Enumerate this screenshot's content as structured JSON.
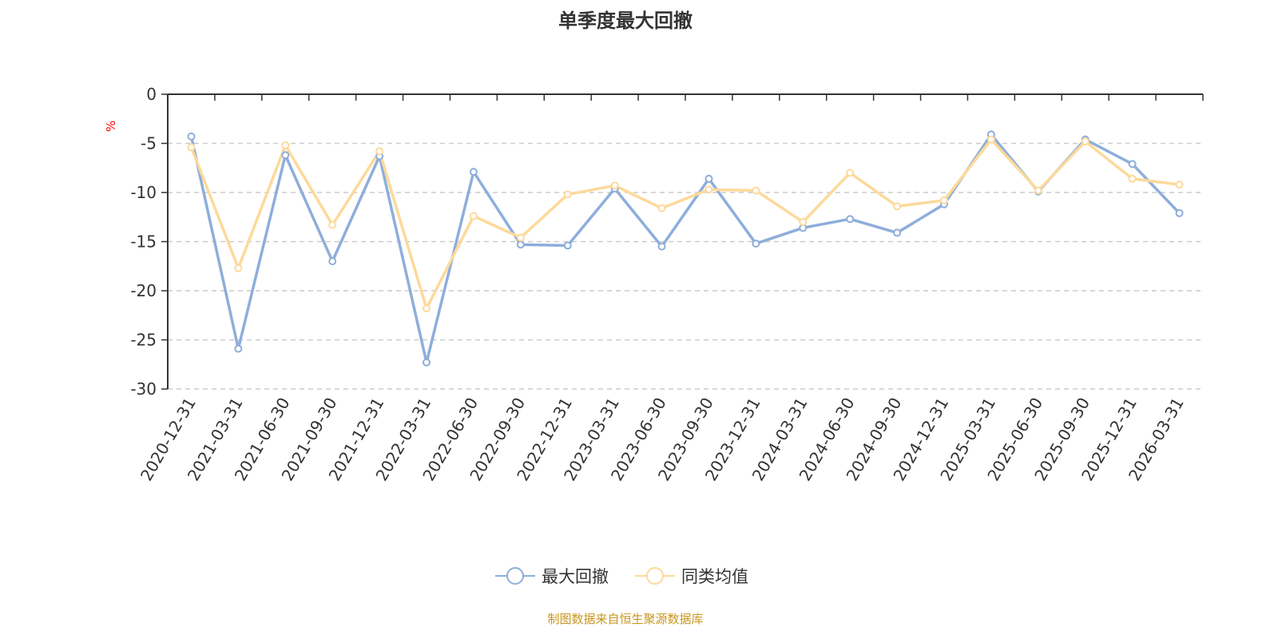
{
  "chart_data": {
    "type": "line",
    "title": "单季度最大回撤",
    "ylabel": "%",
    "ylim": [
      -30,
      0
    ],
    "yticks": [
      0,
      -5,
      -10,
      -15,
      -20,
      -25,
      -30
    ],
    "grid": true,
    "legend_position": "bottom",
    "categories": [
      "2020-12-31",
      "2021-03-31",
      "2021-06-30",
      "2021-09-30",
      "2021-12-31",
      "2022-03-31",
      "2022-06-30",
      "2022-09-30",
      "2022-12-31",
      "2023-03-31",
      "2023-06-30",
      "2023-09-30",
      "2023-12-31",
      "2024-03-31",
      "2024-06-30",
      "2024-09-30",
      "2024-12-31",
      "2025-03-31",
      "2025-06-30",
      "2025-09-30",
      "2025-12-31",
      "2026-03-31"
    ],
    "series": [
      {
        "name": "最大回撤",
        "color": "#8eaedb",
        "values": [
          -4.3,
          -25.9,
          -6.2,
          -17.0,
          -6.3,
          -27.3,
          -7.9,
          -15.3,
          -15.4,
          -9.6,
          -15.5,
          -8.6,
          -15.2,
          -13.6,
          -12.7,
          -14.1,
          -11.2,
          -4.1,
          -9.9,
          -4.6,
          -7.1,
          -12.1
        ]
      },
      {
        "name": "同类均值",
        "color": "#fdd99a",
        "values": [
          -5.4,
          -17.7,
          -5.2,
          -13.3,
          -5.8,
          -21.8,
          -12.4,
          -14.6,
          -10.2,
          -9.3,
          -11.6,
          -9.7,
          -9.8,
          -13.0,
          -8.0,
          -11.4,
          -10.8,
          -4.6,
          -9.8,
          -4.8,
          -8.6,
          -9.2
        ]
      }
    ]
  },
  "source": "制图数据来自恒生聚源数据库"
}
